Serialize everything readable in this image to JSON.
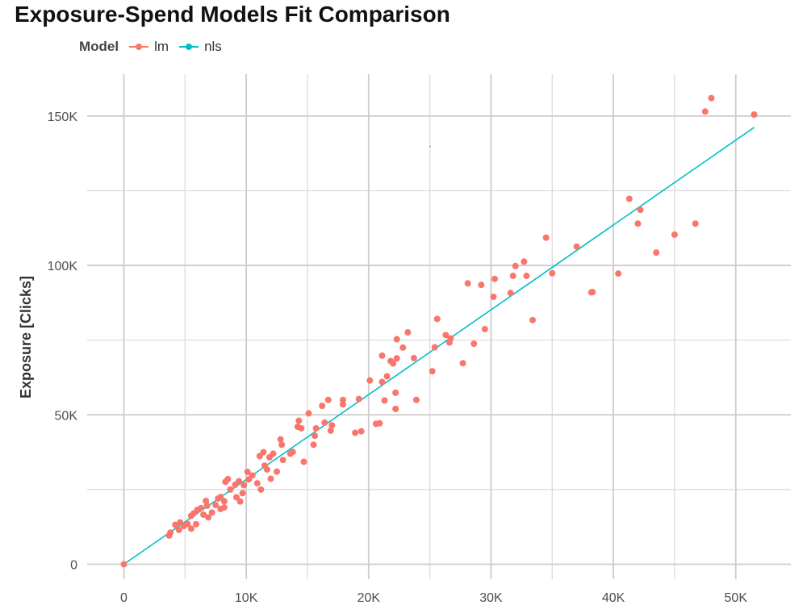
{
  "chart_data": {
    "type": "scatter",
    "title": "Exposure-Spend Models Fit Comparison",
    "xlabel": "",
    "ylabel": "Exposure [Clicks]",
    "xlim": [
      -3000,
      54500
    ],
    "ylim": [
      -5000,
      164000
    ],
    "grid": true,
    "legend": {
      "title": "Model",
      "position": "top-left"
    },
    "x_ticks": [
      0,
      10000,
      20000,
      30000,
      40000,
      50000
    ],
    "x_tick_labels": [
      "0",
      "10K",
      "20K",
      "30K",
      "40K",
      "50K"
    ],
    "y_ticks": [
      0,
      50000,
      100000,
      150000
    ],
    "y_tick_labels": [
      "0",
      "50K",
      "100K",
      "150K"
    ],
    "series": [
      {
        "name": "lm",
        "color": "#f8766d",
        "kind": "points",
        "points": [
          [
            0,
            0
          ],
          [
            3700,
            9600
          ],
          [
            3800,
            10600
          ],
          [
            4200,
            13200
          ],
          [
            4500,
            11500
          ],
          [
            4600,
            14000
          ],
          [
            4900,
            12800
          ],
          [
            5200,
            13500
          ],
          [
            5500,
            16200
          ],
          [
            5500,
            11900
          ],
          [
            5700,
            17000
          ],
          [
            5900,
            13400
          ],
          [
            6000,
            18200
          ],
          [
            6300,
            18800
          ],
          [
            6500,
            16600
          ],
          [
            6700,
            21200
          ],
          [
            6800,
            19600
          ],
          [
            6900,
            15700
          ],
          [
            7200,
            17300
          ],
          [
            7500,
            19800
          ],
          [
            7700,
            22000
          ],
          [
            7900,
            22500
          ],
          [
            7900,
            18500
          ],
          [
            8200,
            21100
          ],
          [
            8200,
            19000
          ],
          [
            8300,
            27600
          ],
          [
            8500,
            28500
          ],
          [
            8700,
            25000
          ],
          [
            9100,
            26600
          ],
          [
            9200,
            22400
          ],
          [
            9400,
            27800
          ],
          [
            9500,
            21000
          ],
          [
            9700,
            23800
          ],
          [
            9800,
            26500
          ],
          [
            10100,
            30900
          ],
          [
            10200,
            28400
          ],
          [
            10500,
            29700
          ],
          [
            10900,
            27100
          ],
          [
            11100,
            36200
          ],
          [
            11200,
            25000
          ],
          [
            11400,
            37500
          ],
          [
            11500,
            33000
          ],
          [
            11700,
            31700
          ],
          [
            11900,
            35800
          ],
          [
            12000,
            28600
          ],
          [
            12200,
            37000
          ],
          [
            12500,
            31000
          ],
          [
            12800,
            41800
          ],
          [
            12900,
            40000
          ],
          [
            13000,
            34900
          ],
          [
            13600,
            37000
          ],
          [
            13800,
            37600
          ],
          [
            14200,
            46000
          ],
          [
            14300,
            48000
          ],
          [
            14500,
            45500
          ],
          [
            14700,
            34300
          ],
          [
            15100,
            50500
          ],
          [
            15500,
            40000
          ],
          [
            15600,
            43000
          ],
          [
            15700,
            45500
          ],
          [
            16200,
            53000
          ],
          [
            16400,
            47400
          ],
          [
            16700,
            55000
          ],
          [
            16900,
            44700
          ],
          [
            17000,
            46500
          ],
          [
            17900,
            55000
          ],
          [
            17900,
            53500
          ],
          [
            18900,
            44000
          ],
          [
            19200,
            55300
          ],
          [
            19400,
            44500
          ],
          [
            20100,
            61500
          ],
          [
            20600,
            47000
          ],
          [
            20900,
            47200
          ],
          [
            21100,
            69800
          ],
          [
            21100,
            61000
          ],
          [
            21300,
            54800
          ],
          [
            21500,
            62900
          ],
          [
            21800,
            68000
          ],
          [
            22000,
            67200
          ],
          [
            22200,
            52000
          ],
          [
            22200,
            57400
          ],
          [
            22300,
            68900
          ],
          [
            22300,
            75300
          ],
          [
            22800,
            72500
          ],
          [
            23200,
            77600
          ],
          [
            23700,
            69000
          ],
          [
            23900,
            55000
          ],
          [
            25200,
            64600
          ],
          [
            25400,
            72600
          ],
          [
            25600,
            82100
          ],
          [
            26300,
            76700
          ],
          [
            26600,
            74200
          ],
          [
            26700,
            75600
          ],
          [
            27700,
            67300
          ],
          [
            28100,
            94000
          ],
          [
            28600,
            73800
          ],
          [
            29200,
            93500
          ],
          [
            29500,
            78700
          ],
          [
            30200,
            89500
          ],
          [
            30300,
            95500
          ],
          [
            31600,
            90800
          ],
          [
            31800,
            96500
          ],
          [
            32000,
            99800
          ],
          [
            32700,
            101300
          ],
          [
            32900,
            96500
          ],
          [
            33400,
            81700
          ],
          [
            34500,
            109300
          ],
          [
            35000,
            97400
          ],
          [
            37000,
            106300
          ],
          [
            38200,
            91000
          ],
          [
            38300,
            91100
          ],
          [
            40400,
            97300
          ],
          [
            41300,
            122300
          ],
          [
            42000,
            114000
          ],
          [
            42200,
            118600
          ],
          [
            43500,
            104300
          ],
          [
            45000,
            110300
          ],
          [
            46700,
            114000
          ],
          [
            47500,
            151500
          ],
          [
            48000,
            156000
          ],
          [
            51500,
            150500
          ]
        ]
      },
      {
        "name": "nls",
        "color": "#00bfc4",
        "kind": "line",
        "points": [
          [
            0,
            0
          ],
          [
            51500,
            146200
          ]
        ]
      }
    ]
  },
  "annotations": {
    "stray_mark": {
      "x": 25000,
      "y": 140000,
      "color": "#333333"
    }
  }
}
